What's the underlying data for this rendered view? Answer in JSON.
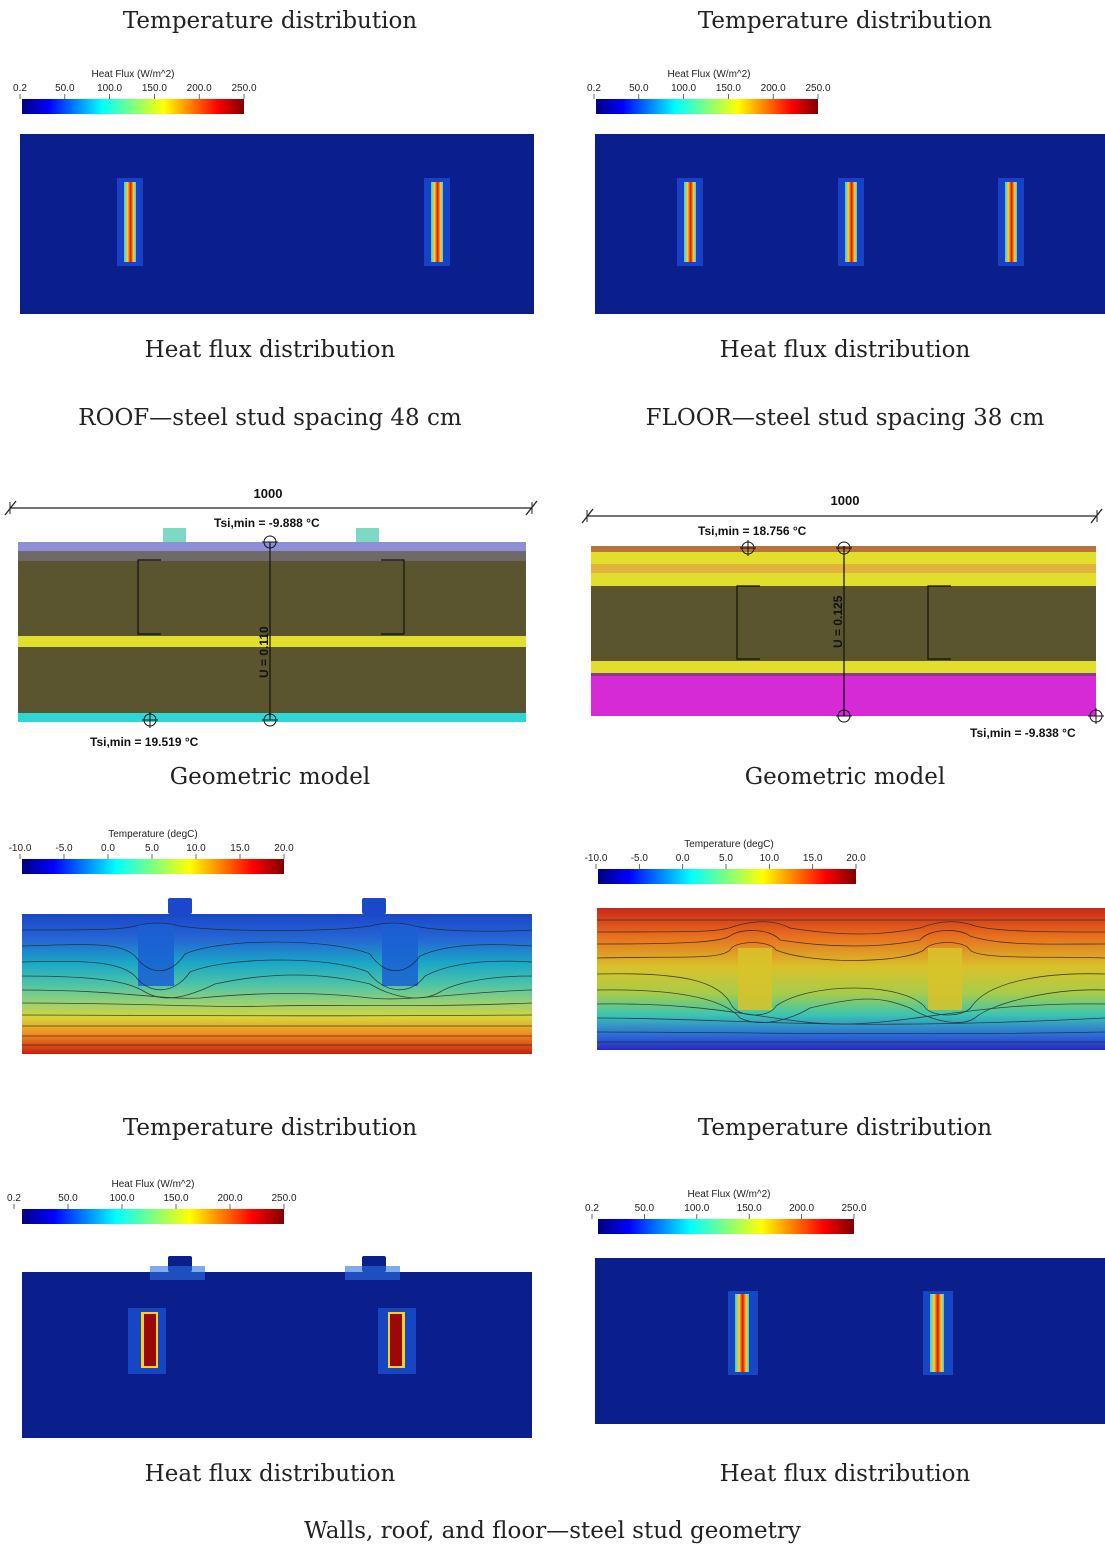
{
  "captions": {
    "top_left": "Temperature distribution",
    "top_right": "Temperature distribution",
    "hf1_left": "Heat flux distribution",
    "hf1_right": "Heat flux distribution",
    "roof_title": "ROOF—steel stud spacing 48 cm",
    "floor_title": "FLOOR—steel stud spacing 38 cm",
    "geo_left": "Geometric model",
    "geo_right": "Geometric model",
    "temp_left": "Temperature distribution",
    "temp_right": "Temperature distribution",
    "hf2_left": "Heat flux distribution",
    "hf2_right": "Heat flux distribution",
    "figure_caption": "Walls, roof, and floor—steel stud geometry"
  },
  "heat_flux_legend": {
    "title": "Heat Flux (W/m^2)",
    "ticks": [
      "0.2",
      "50.0",
      "100.0",
      "150.0",
      "200.0",
      "250.0"
    ]
  },
  "temperature_legend": {
    "title": "Temperature (degC)",
    "ticks": [
      "-10.0",
      "-5.0",
      "0.0",
      "5.0",
      "10.0",
      "15.0",
      "20.0"
    ]
  },
  "roof_model": {
    "dimension": "1000",
    "tsi_top": "Tsi,min = -9.888 °C",
    "tsi_bottom": "Tsi,min = 19.519 °C",
    "u_value": "U = 0.110"
  },
  "floor_model": {
    "dimension": "1000",
    "tsi_top": "Tsi,min = 18.756 °C",
    "tsi_bottom": "Tsi,min = -9.838 °C",
    "u_value": "U = 0.125"
  },
  "colors": {
    "field_blue": "#0a1f8c",
    "roof_top_layer": "#8c8fd6",
    "roof_cap": "#7dd9c4",
    "insulation": "#5a552f",
    "yellow_layer": "#e2de2c",
    "cyan_layer": "#2ed6d6",
    "floor_brown": "#b8743a",
    "floor_orange": "#e2b33c",
    "magenta_layer": "#d52ad5"
  }
}
